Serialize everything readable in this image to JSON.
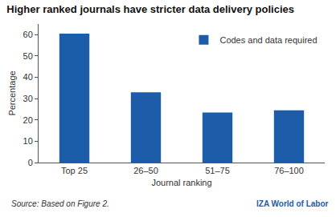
{
  "chart_data": {
    "type": "bar",
    "title": "Higher ranked journals have stricter data delivery policies",
    "categories": [
      "Top 25",
      "26–50",
      "51–75",
      "76–100"
    ],
    "series": [
      {
        "name": "Codes and data required",
        "color": "#1d5ca8",
        "values": [
          60.5,
          33,
          23.5,
          24.5
        ]
      }
    ],
    "xlabel": "Journal ranking",
    "ylabel": "Percentage",
    "ylim": [
      0,
      65
    ],
    "yticks": [
      0,
      10,
      20,
      30,
      40,
      50,
      60
    ],
    "grid": false,
    "legend": "top right",
    "annotations": [
      "Source: Based on Figure 2.",
      "IZA World of Labor"
    ]
  }
}
